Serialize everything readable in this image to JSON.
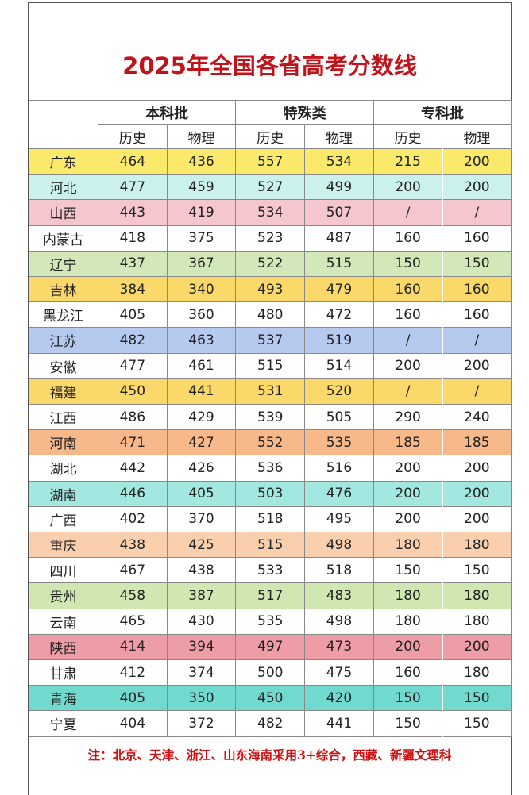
{
  "title": "2025年全国各省高考分数线",
  "header": {
    "groups": [
      "本科批",
      "特殊类",
      "专科批"
    ],
    "subheaders": [
      "历史",
      "物理",
      "历史",
      "物理",
      "历史",
      "物理"
    ]
  },
  "rows": [
    {
      "province": "广东",
      "color": "#fbe96c",
      "values": [
        464,
        436,
        557,
        534,
        215,
        200
      ]
    },
    {
      "province": "河北",
      "color": "#cbf1ec",
      "values": [
        477,
        459,
        527,
        499,
        200,
        200
      ]
    },
    {
      "province": "山西",
      "color": "#f6c6cf",
      "values": [
        443,
        419,
        534,
        507,
        "/",
        "/"
      ]
    },
    {
      "province": "内蒙古",
      "color": "#ffffff",
      "values": [
        418,
        375,
        523,
        487,
        160,
        160
      ]
    },
    {
      "province": "辽宁",
      "color": "#d3e8b8",
      "values": [
        437,
        367,
        522,
        515,
        150,
        150
      ]
    },
    {
      "province": "吉林",
      "color": "#fbd86a",
      "values": [
        384,
        340,
        493,
        479,
        160,
        160
      ]
    },
    {
      "province": "黑龙江",
      "color": "#ffffff",
      "values": [
        405,
        360,
        480,
        472,
        160,
        160
      ]
    },
    {
      "province": "江苏",
      "color": "#b6c9ee",
      "values": [
        482,
        463,
        537,
        519,
        "/",
        "/"
      ]
    },
    {
      "province": "安徽",
      "color": "#ffffff",
      "values": [
        477,
        461,
        515,
        514,
        200,
        200
      ]
    },
    {
      "province": "福建",
      "color": "#fbd86a",
      "values": [
        450,
        441,
        531,
        520,
        "/",
        "/"
      ]
    },
    {
      "province": "江西",
      "color": "#ffffff",
      "values": [
        486,
        429,
        539,
        505,
        290,
        240
      ]
    },
    {
      "province": "河南",
      "color": "#f7b98a",
      "values": [
        471,
        427,
        552,
        535,
        185,
        185
      ]
    },
    {
      "province": "湖北",
      "color": "#ffffff",
      "values": [
        442,
        426,
        536,
        516,
        200,
        200
      ]
    },
    {
      "province": "湖南",
      "color": "#a2e7e0",
      "values": [
        446,
        405,
        503,
        476,
        200,
        200
      ]
    },
    {
      "province": "广西",
      "color": "#ffffff",
      "values": [
        402,
        370,
        518,
        495,
        200,
        200
      ]
    },
    {
      "province": "重庆",
      "color": "#f9cfae",
      "values": [
        438,
        425,
        515,
        498,
        180,
        180
      ]
    },
    {
      "province": "四川",
      "color": "#ffffff",
      "values": [
        467,
        438,
        533,
        518,
        150,
        150
      ]
    },
    {
      "province": "贵州",
      "color": "#d0e7b2",
      "values": [
        458,
        387,
        517,
        483,
        180,
        180
      ]
    },
    {
      "province": "云南",
      "color": "#ffffff",
      "values": [
        465,
        430,
        535,
        498,
        180,
        180
      ]
    },
    {
      "province": "陕西",
      "color": "#ee9ca5",
      "values": [
        414,
        394,
        497,
        473,
        200,
        200
      ]
    },
    {
      "province": "甘肃",
      "color": "#ffffff",
      "values": [
        412,
        374,
        500,
        475,
        160,
        180
      ]
    },
    {
      "province": "青海",
      "color": "#72d9cf",
      "values": [
        405,
        350,
        450,
        420,
        150,
        150
      ]
    },
    {
      "province": "宁夏",
      "color": "#ffffff",
      "values": [
        404,
        372,
        482,
        441,
        150,
        150
      ]
    }
  ],
  "note": "注：北京、天津、浙江、山东海南采用3+综合，西藏、新疆文理科"
}
